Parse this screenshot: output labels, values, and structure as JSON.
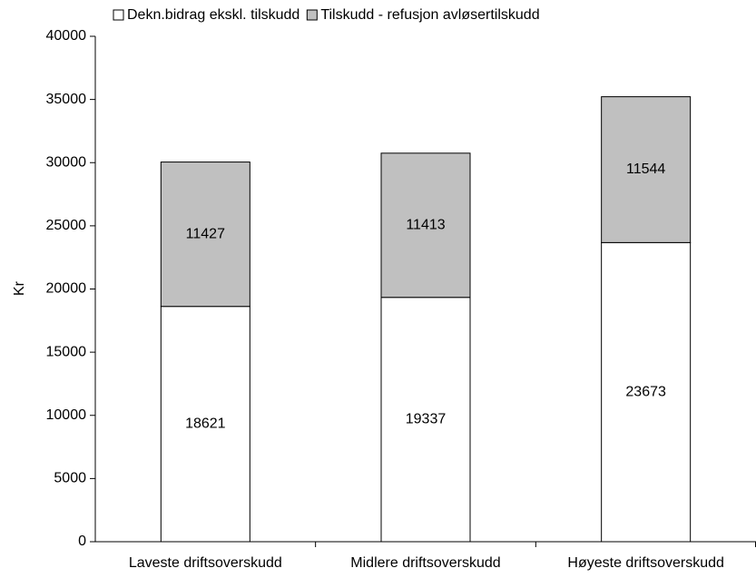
{
  "chart_data": {
    "type": "stacked_bar",
    "ylabel": "Kr",
    "categories": [
      "Laveste driftsoverskudd",
      "Midlere driftsoverskudd",
      "Høyeste driftsoverskudd"
    ],
    "series": [
      {
        "name": "Dekn.bidrag ekskl. tilskudd",
        "color": "#ffffff",
        "values": [
          18621,
          19337,
          23673
        ]
      },
      {
        "name": "Tilskudd - refusjon avløsertilskudd",
        "color": "#c0c0c0",
        "values": [
          11427,
          11413,
          11544
        ]
      }
    ],
    "ylim": [
      0,
      40000
    ],
    "yticks": [
      0,
      5000,
      10000,
      15000,
      20000,
      25000,
      30000,
      35000,
      40000
    ],
    "legend": "top"
  }
}
